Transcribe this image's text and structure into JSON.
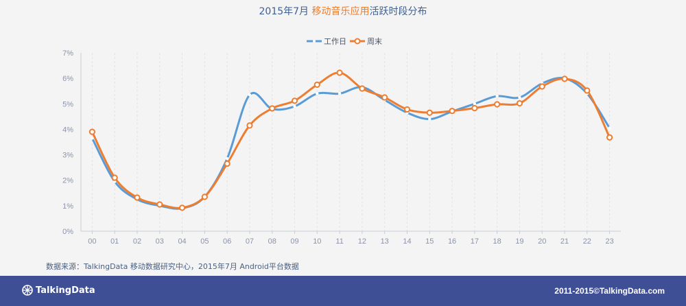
{
  "header": {
    "title_prefix": "2015年7月 ",
    "title_highlight": "移动音乐应用",
    "title_suffix": "活跃时段分布"
  },
  "colors": {
    "workday": "#5b9bd5",
    "weekend": "#ed7d31",
    "title_highlight": "#ee7d2b",
    "footer_bg": "#3f4f96"
  },
  "chart_data": {
    "type": "line",
    "title": "2015年7月 移动音乐应用活跃时段分布",
    "categories": [
      "00",
      "01",
      "02",
      "03",
      "04",
      "05",
      "06",
      "07",
      "08",
      "09",
      "10",
      "11",
      "12",
      "13",
      "14",
      "15",
      "16",
      "17",
      "18",
      "19",
      "20",
      "21",
      "22",
      "23"
    ],
    "series": [
      {
        "name": "工作日",
        "values": [
          3.65,
          1.95,
          1.25,
          1.0,
          0.9,
          1.35,
          2.85,
          5.35,
          4.8,
          4.9,
          5.4,
          5.4,
          5.65,
          5.15,
          4.65,
          4.4,
          4.7,
          5.0,
          5.3,
          5.25,
          5.8,
          6.0,
          5.4,
          4.05
        ]
      },
      {
        "name": "周末",
        "values": [
          3.9,
          2.1,
          1.32,
          1.05,
          0.92,
          1.35,
          2.65,
          4.15,
          4.82,
          5.12,
          5.75,
          6.22,
          5.6,
          5.25,
          4.78,
          4.65,
          4.72,
          4.83,
          4.98,
          5.02,
          5.68,
          5.98,
          5.52,
          3.68
        ]
      }
    ],
    "y_ticks": [
      "0%",
      "1%",
      "2%",
      "3%",
      "4%",
      "5%",
      "6%",
      "7%"
    ],
    "ylim": [
      0,
      7
    ],
    "y_unit": "%",
    "legend_position": "top-center",
    "grid": "vertical dashed"
  },
  "footer": {
    "source": "数据来源：TalkingData 移动数据研究中心，2015年7月 Android平台数据",
    "brand": "TalkingData",
    "copyright": "2011-2015©TalkingData.com"
  }
}
